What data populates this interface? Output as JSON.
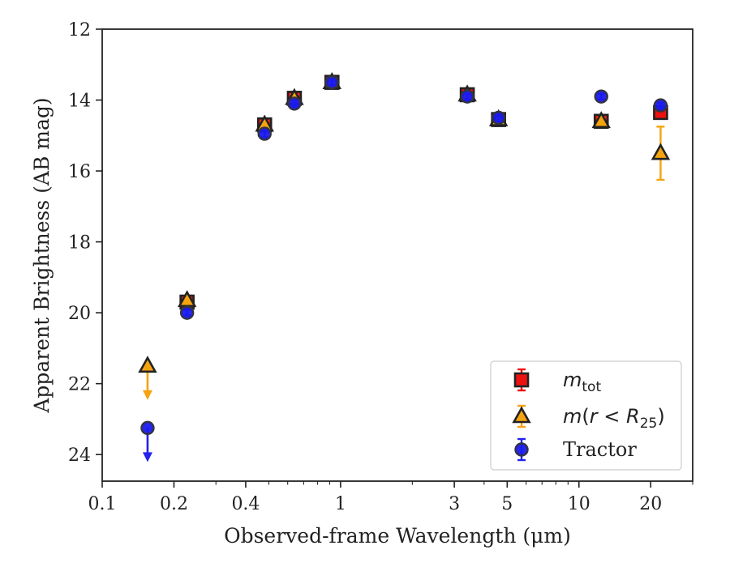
{
  "chart_data": {
    "type": "scatter",
    "title": "",
    "xlabel": "Observed-frame Wavelength (μm)",
    "ylabel": "Apparent Brightness (AB mag)",
    "x_scale": "log",
    "xlim": [
      0.1,
      30
    ],
    "ylim": [
      24.75,
      12
    ],
    "y_inverted": true,
    "x_ticks": [
      0.1,
      0.2,
      0.4,
      1,
      3,
      5,
      10,
      20
    ],
    "x_tick_labels": [
      "0.1",
      "0.2",
      "0.4",
      "1",
      "3",
      "5",
      "10",
      "20"
    ],
    "y_ticks": [
      12,
      14,
      16,
      18,
      20,
      22,
      24
    ],
    "y_tick_labels": [
      "12",
      "14",
      "16",
      "18",
      "20",
      "22",
      "24"
    ],
    "grid": false,
    "legend_position": "lower-right",
    "series": [
      {
        "name": "m_tot",
        "legend_label": "m_tot",
        "marker": "square",
        "face_color": "#ee1111",
        "edge_color": "#222222",
        "error_color": "#ee1111",
        "points": [
          {
            "x": 0.227,
            "y": 19.7,
            "err": 0.08
          },
          {
            "x": 0.48,
            "y": 14.7,
            "err": 0.1
          },
          {
            "x": 0.64,
            "y": 13.95,
            "err": 0.1
          },
          {
            "x": 0.92,
            "y": 13.5,
            "err": 0.08
          },
          {
            "x": 3.4,
            "y": 13.85,
            "err": 0.08
          },
          {
            "x": 4.6,
            "y": 14.55,
            "err": 0.1
          },
          {
            "x": 12.4,
            "y": 14.6,
            "err": 0.1
          },
          {
            "x": 22.0,
            "y": 14.35,
            "err": 0.15
          }
        ]
      },
      {
        "name": "m(r < R25)",
        "legend_label": "m(r < R25)",
        "marker": "triangle",
        "face_color": "#f5a30f",
        "edge_color": "#222222",
        "error_color": "#f5a30f",
        "points": [
          {
            "x": 0.155,
            "y": 21.5,
            "upper_limit": true
          },
          {
            "x": 0.227,
            "y": 19.65,
            "err": 0.08
          },
          {
            "x": 0.48,
            "y": 14.7,
            "err": 0.1
          },
          {
            "x": 0.64,
            "y": 13.95,
            "err": 0.1
          },
          {
            "x": 0.92,
            "y": 13.5,
            "err": 0.08
          },
          {
            "x": 3.4,
            "y": 13.85,
            "err": 0.08
          },
          {
            "x": 4.6,
            "y": 14.55,
            "err": 0.1
          },
          {
            "x": 12.4,
            "y": 14.6,
            "err": 0.1
          },
          {
            "x": 22.0,
            "y": 15.5,
            "err": 0.75
          }
        ]
      },
      {
        "name": "Tractor",
        "legend_label": "Tractor",
        "marker": "circle",
        "face_color": "#1a1aee",
        "edge_color": "#333344",
        "error_color": "#2222ee",
        "points": [
          {
            "x": 0.155,
            "y": 23.25,
            "upper_limit": true
          },
          {
            "x": 0.227,
            "y": 20.0,
            "err": 0.08
          },
          {
            "x": 0.48,
            "y": 14.95,
            "err": 0.1
          },
          {
            "x": 0.64,
            "y": 14.1,
            "err": 0.1
          },
          {
            "x": 0.92,
            "y": 13.5,
            "err": 0.08
          },
          {
            "x": 3.4,
            "y": 13.9,
            "err": 0.08
          },
          {
            "x": 4.6,
            "y": 14.5,
            "err": 0.1
          },
          {
            "x": 12.4,
            "y": 13.9,
            "err": 0.08
          },
          {
            "x": 22.0,
            "y": 14.15,
            "err": 0.08
          }
        ]
      }
    ]
  }
}
